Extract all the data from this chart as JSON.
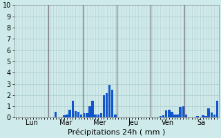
{
  "xlabel": "Précipitations 24h ( mm )",
  "ylim": [
    0,
    10
  ],
  "yticks": [
    0,
    1,
    2,
    3,
    4,
    5,
    6,
    7,
    8,
    9,
    10
  ],
  "background_color": "#ceeaea",
  "bar_color": "#1155cc",
  "bar_color2": "#3377dd",
  "grid_color_h": "#aacccc",
  "grid_color_v": "#bbcccc",
  "day_line_color": "#777788",
  "days": [
    "Lun",
    "Mar",
    "Mer",
    "Jeu",
    "Ven",
    "Sa"
  ],
  "n_bars": 72,
  "bars_per_day": 12,
  "bar_values": [
    0,
    0,
    0,
    0,
    0,
    0,
    0,
    0,
    0,
    0,
    0,
    0,
    0,
    0,
    0.5,
    0,
    0,
    0.2,
    0.3,
    0.7,
    1.5,
    0.6,
    0.5,
    0.3,
    0.4,
    0.4,
    1.0,
    1.5,
    0.3,
    0.3,
    0.4,
    2.0,
    2.2,
    2.9,
    2.5,
    0.3,
    0,
    0,
    0,
    0,
    0,
    0,
    0,
    0,
    0,
    0,
    0,
    0,
    0,
    0,
    0,
    0.15,
    0.2,
    0.65,
    0.7,
    0.5,
    0.3,
    0.3,
    0.95,
    1.0,
    0.3,
    0,
    0,
    0,
    0.15,
    0,
    0.2,
    0.15,
    0.85,
    0.45,
    0.3,
    1.5
  ],
  "xlabel_fontsize": 8,
  "ytick_fontsize": 7,
  "xtick_fontsize": 7
}
